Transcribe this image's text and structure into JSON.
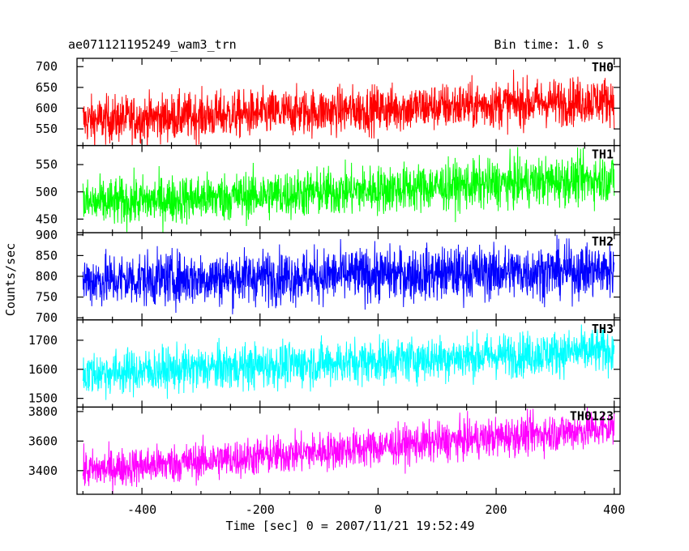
{
  "header": {
    "title": "ae071121195249_wam3_trn",
    "bin_time": "Bin time: 1.0 s"
  },
  "chart_data": {
    "type": "line",
    "title": "ae071121195249_wam3_trn",
    "xlabel": "Time [sec] 0 = 2007/11/21 19:52:49",
    "ylabel": "Counts/sec",
    "xlim": [
      -510,
      410
    ],
    "x_ticks": [
      -400,
      -200,
      0,
      200,
      400
    ],
    "x_range": [
      -500,
      400
    ],
    "grid": false,
    "panels": [
      {
        "name": "TH0",
        "color": "#ff0000",
        "ylim": [
          510,
          720
        ],
        "y_ticks": [
          550,
          600,
          650,
          700
        ],
        "trend": [
          570,
          620
        ],
        "noise": 28
      },
      {
        "name": "TH1",
        "color": "#00ff00",
        "ylim": [
          425,
          585
        ],
        "y_ticks": [
          450,
          500,
          550
        ],
        "trend": [
          478,
          525
        ],
        "noise": 22
      },
      {
        "name": "TH2",
        "color": "#0000ff",
        "ylim": [
          695,
          905
        ],
        "y_ticks": [
          700,
          750,
          800,
          850,
          900
        ],
        "trend": [
          790,
          815
        ],
        "noise": 32
      },
      {
        "name": "TH3",
        "color": "#00ffff",
        "ylim": [
          1470,
          1770
        ],
        "y_ticks": [
          1500,
          1600,
          1700
        ],
        "trend": [
          1585,
          1665
        ],
        "noise": 38
      },
      {
        "name": "TH0123",
        "color": "#ff00ff",
        "ylim": [
          3240,
          3830
        ],
        "y_ticks": [
          3400,
          3600,
          3800
        ],
        "trend": [
          3400,
          3690
        ],
        "noise": 65
      }
    ]
  }
}
